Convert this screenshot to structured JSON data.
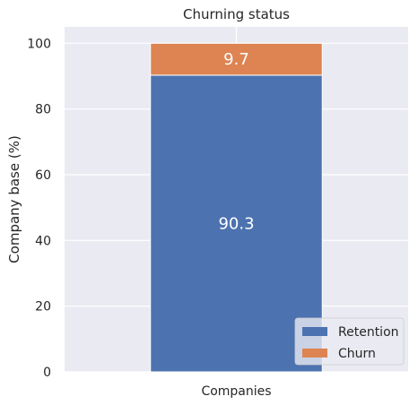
{
  "chart_data": {
    "type": "bar",
    "stacked": true,
    "title": "Churning status",
    "xlabel": "",
    "ylabel": "Company base (%)",
    "categories": [
      "Companies"
    ],
    "ylim": [
      0,
      105
    ],
    "yticks": [
      0,
      20,
      40,
      60,
      80,
      100
    ],
    "grid": true,
    "legend_position": "bottom-right",
    "series": [
      {
        "name": "Retention",
        "values": [
          90.3
        ],
        "color": "#4c72b0",
        "label": "90.3"
      },
      {
        "name": "Churn",
        "values": [
          9.7
        ],
        "color": "#dd8452",
        "label": "9.7"
      }
    ],
    "background_color": "#eaeaf2"
  }
}
